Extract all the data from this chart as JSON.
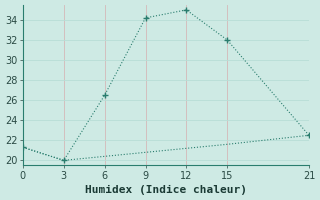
{
  "xlabel": "Humidex (Indice chaleur)",
  "line1_x": [
    0,
    3,
    6,
    9,
    12,
    15,
    21
  ],
  "line1_y": [
    21.3,
    20.0,
    26.5,
    34.2,
    35.0,
    32.0,
    22.5
  ],
  "line2_x": [
    0,
    3,
    6,
    9,
    12,
    15,
    21
  ],
  "line2_y": [
    21.3,
    20.0,
    20.4,
    20.8,
    21.2,
    21.6,
    22.5
  ],
  "line_color": "#2a7d6e",
  "bg_color": "#ceeae4",
  "grid_color_h": "#b8ddd6",
  "grid_color_v": "#d4b8b8",
  "xlim": [
    0,
    21
  ],
  "ylim": [
    19.5,
    35.5
  ],
  "xticks": [
    0,
    3,
    6,
    9,
    12,
    15,
    21
  ],
  "yticks": [
    20,
    22,
    24,
    26,
    28,
    30,
    32,
    34
  ],
  "tick_fontsize": 7,
  "xlabel_fontsize": 8
}
